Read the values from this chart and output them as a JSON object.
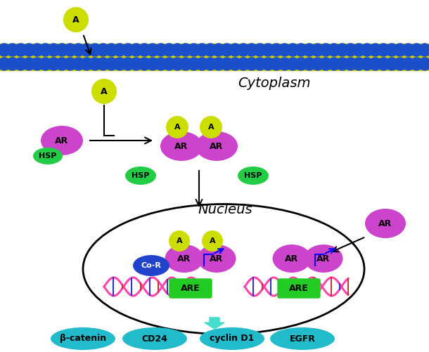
{
  "bg_color": "#ffffff",
  "membrane_yellow": "#cccc00",
  "membrane_blue": "#1a4fcc",
  "colors": {
    "androgen": "#ccdd00",
    "AR": "#cc44cc",
    "HSP": "#22cc44",
    "CoR": "#2244cc",
    "ARE": "#22cc22",
    "teal_box": "#22bbcc",
    "teal_arrow": "#44ddcc"
  },
  "labels": {
    "cytoplasm": "Cytoplasm",
    "nucleus": "Nucleus",
    "A": "A",
    "AR": "AR",
    "HSP": "HSP",
    "CoR": "Co-R",
    "ARE": "ARE",
    "beta_catenin": "β-catenin",
    "CD24": "CD24",
    "cyclin_D1": "cyclin D1",
    "EGFR": "EGFR"
  }
}
